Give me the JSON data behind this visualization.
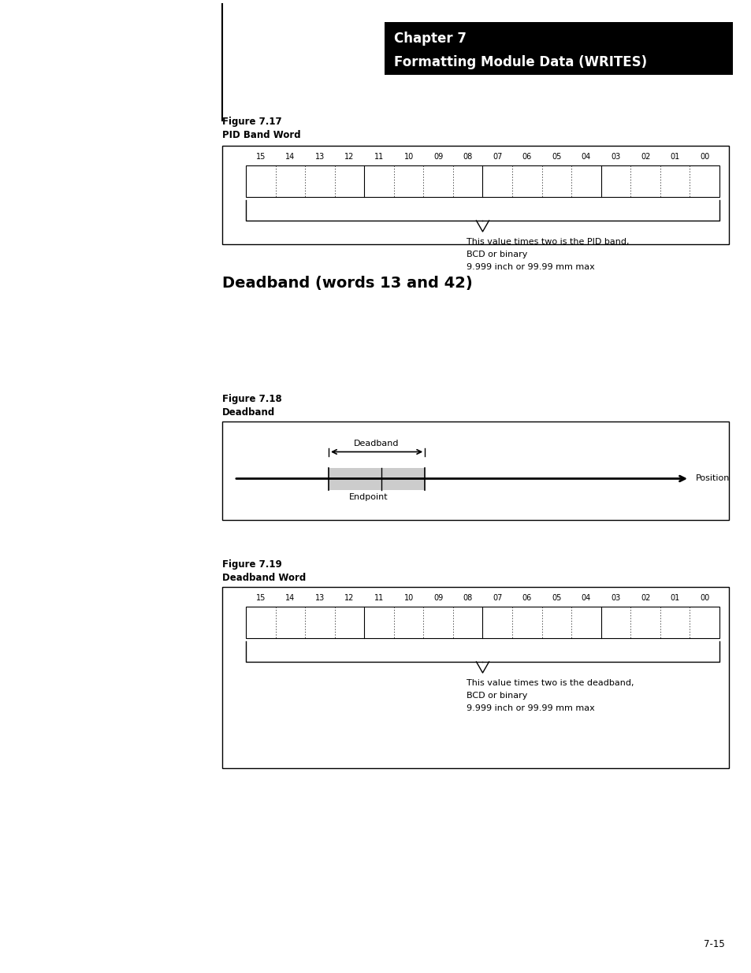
{
  "page_width": 9.54,
  "page_height": 12.35,
  "background_color": "#ffffff",
  "chapter_box": {
    "text_line1": "Chapter 7",
    "text_line2": "Formatting Module Data (WRITES)",
    "bg_color": "#000000",
    "text_color": "#ffffff"
  },
  "fig717_label": "Figure 7.17",
  "fig717_sublabel": "PID Band Word",
  "fig717_bit_labels": [
    "15",
    "14",
    "13",
    "12",
    "11",
    "10",
    "09",
    "08",
    "07",
    "06",
    "05",
    "04",
    "03",
    "02",
    "01",
    "00"
  ],
  "fig717_annotation_line1": "This value times two is the PID band,",
  "fig717_annotation_line2": "BCD or binary",
  "fig717_annotation_line3": "9.999 inch or 99.99 mm max",
  "section_header": "Deadband (words 13 and 42)",
  "fig718_label": "Figure 7.18",
  "fig718_sublabel": "Deadband",
  "fig718_deadband_text": "Deadband",
  "fig718_endpoint_text": "Endpoint",
  "fig718_position_text": "Position",
  "fig719_label": "Figure 7.19",
  "fig719_sublabel": "Deadband Word",
  "fig719_bit_labels": [
    "15",
    "14",
    "13",
    "12",
    "11",
    "10",
    "09",
    "08",
    "07",
    "06",
    "05",
    "04",
    "03",
    "02",
    "01",
    "00"
  ],
  "fig719_annotation_line1": "This value times two is the deadband,",
  "fig719_annotation_line2": "BCD or binary",
  "fig719_annotation_line3": "9.999 inch or 99.99 mm max",
  "page_number": "7-15"
}
